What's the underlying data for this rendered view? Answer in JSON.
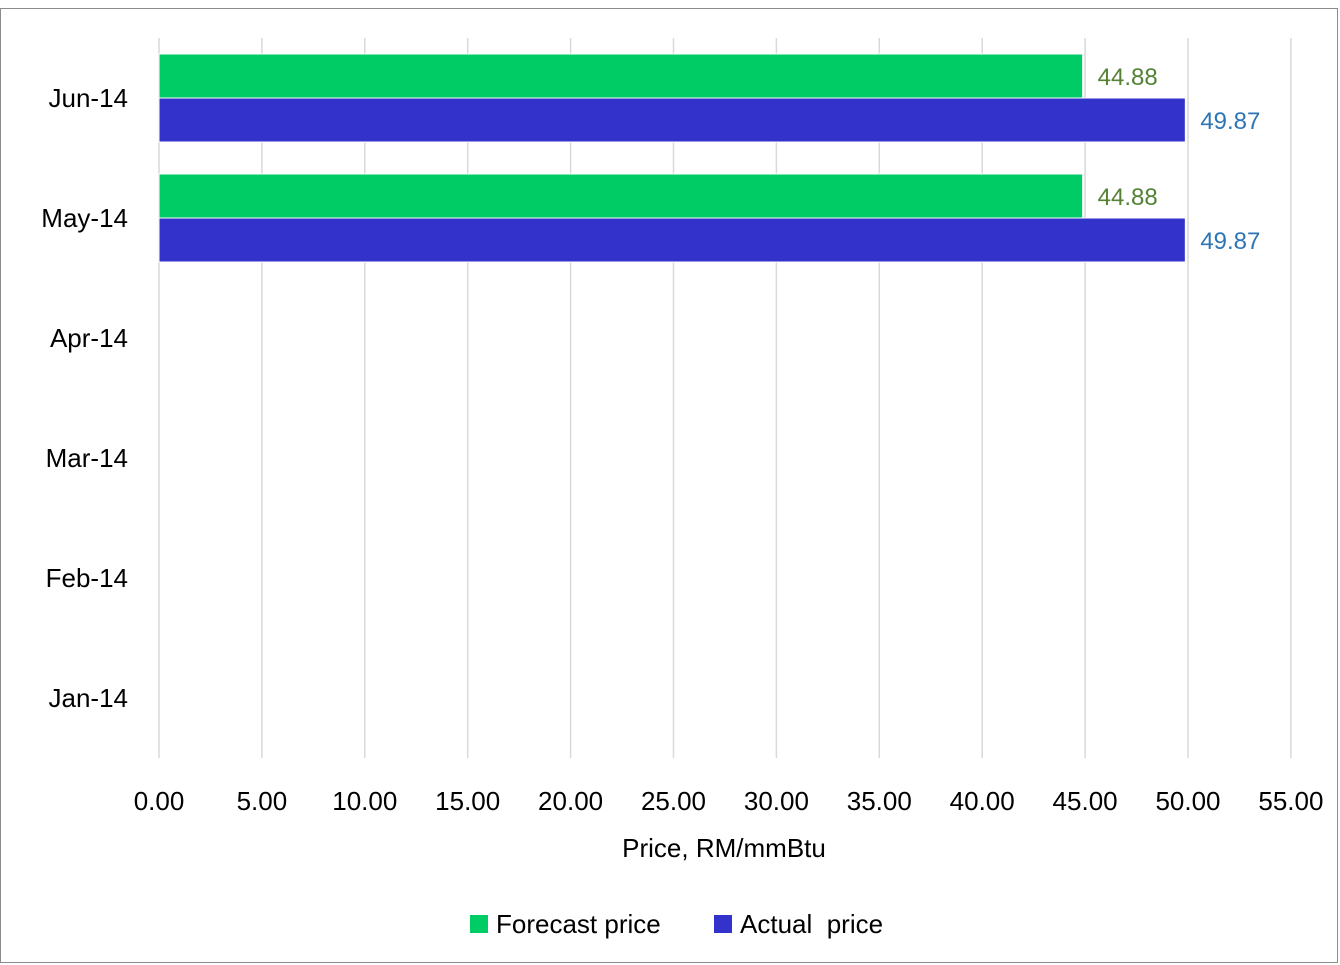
{
  "chart_data": {
    "type": "bar",
    "orientation": "horizontal",
    "categories": [
      "Jan-14",
      "Feb-14",
      "Mar-14",
      "Apr-14",
      "May-14",
      "Jun-14"
    ],
    "series": [
      {
        "name": "Forecast price",
        "color": "#00CC66",
        "label_color": "#548235",
        "values": [
          null,
          null,
          null,
          null,
          44.88,
          44.88
        ],
        "labels": [
          "",
          "",
          "",
          "",
          "44.88",
          "44.88"
        ]
      },
      {
        "name": "Actual  price",
        "color": "#3333CC",
        "label_color": "#2E75B6",
        "values": [
          null,
          null,
          null,
          null,
          49.87,
          49.87
        ],
        "labels": [
          "",
          "",
          "",
          "",
          "49.87",
          "49.87"
        ]
      }
    ],
    "xlabel": "Price, RM/mmBtu",
    "ylabel": "",
    "xlim": [
      0,
      55
    ],
    "xticks": [
      0,
      5,
      10,
      15,
      20,
      25,
      30,
      35,
      40,
      45,
      50,
      55
    ],
    "xtick_labels": [
      "0.00",
      "5.00",
      "10.00",
      "15.00",
      "20.00",
      "25.00",
      "30.00",
      "35.00",
      "40.00",
      "45.00",
      "50.00",
      "55.00"
    ],
    "grid": "vertical",
    "legend_position": "bottom"
  }
}
